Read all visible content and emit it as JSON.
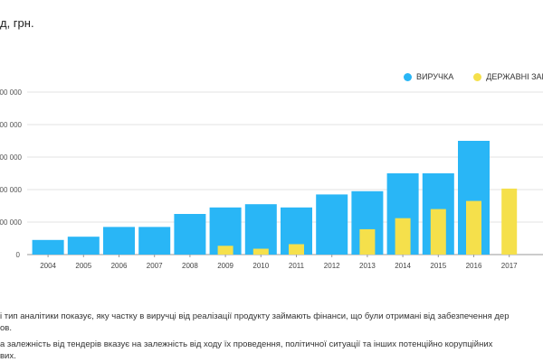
{
  "title": "д, грн.",
  "legend": [
    {
      "label": "ВИРУЧКА",
      "color": "#29b6f6"
    },
    {
      "label": "ДЕРЖАВНІ ЗАКУ",
      "color": "#f5e04b"
    }
  ],
  "notes": [
    "і тип аналітики показує, яку частку в виручці від реалізації продукту займають фінанси, що були отримані від забезпечення дер",
    "ов.",
    "а залежність від тендерів вказує на залежність від ходу їх проведення, політичної ситуації та інших потенційно корупційних",
    "вих."
  ],
  "chart_data": {
    "type": "bar",
    "categories": [
      "2004",
      "2005",
      "2006",
      "2007",
      "2008",
      "2009",
      "2010",
      "2011",
      "2012",
      "2013",
      "2014",
      "2015",
      "2016",
      "2017"
    ],
    "series": [
      {
        "name": "ВИРУЧКА",
        "color": "#29b6f6",
        "values": [
          45000,
          55000,
          85000,
          85000,
          125000,
          145000,
          155000,
          145000,
          185000,
          195000,
          250000,
          250000,
          350000,
          null
        ]
      },
      {
        "name": "ДЕРЖАВНІ ЗАКУ",
        "color": "#f5e04b",
        "values": [
          null,
          null,
          null,
          null,
          null,
          27000,
          18000,
          32000,
          null,
          78000,
          112000,
          140000,
          165000,
          203000
        ]
      }
    ],
    "ytick_labels": [
      "00 000",
      "00 000",
      "00 000",
      "00 000",
      "00 000"
    ],
    "ytick_values": [
      100000,
      200000,
      300000,
      400000,
      500000
    ],
    "ylim": [
      0,
      500000
    ],
    "grid": true,
    "legend_position": "top-right"
  }
}
